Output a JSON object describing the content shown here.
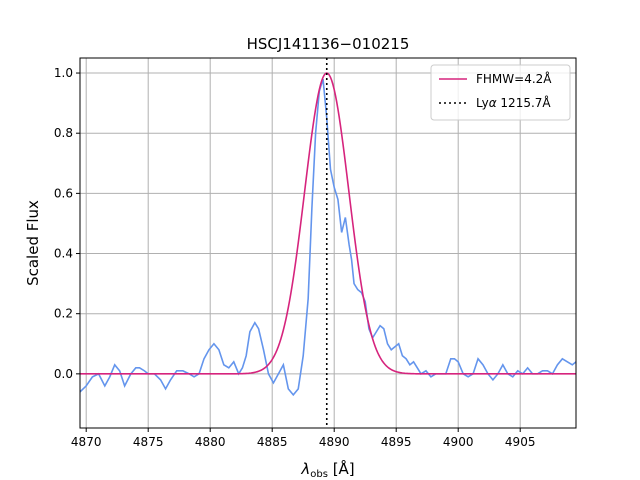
{
  "chart_data": {
    "type": "line",
    "title": "HSCJ141136−010215",
    "xlabel_main": "λ",
    "xlabel_sub": "obs",
    "xlabel_unit": " [Å]",
    "ylabel": "Scaled Flux",
    "xlim": [
      4869.5,
      4909.5
    ],
    "ylim": [
      -0.18,
      1.05
    ],
    "xticks": [
      4870,
      4875,
      4880,
      4885,
      4890,
      4895,
      4900,
      4905
    ],
    "yticks": [
      0.0,
      0.2,
      0.4,
      0.6,
      0.8,
      1.0
    ],
    "xtick_labels": [
      "4870",
      "4875",
      "4880",
      "4885",
      "4890",
      "4895",
      "4900",
      "4905"
    ],
    "ytick_labels": [
      "0.0",
      "0.2",
      "0.4",
      "0.6",
      "0.8",
      "1.0"
    ],
    "grid": true,
    "legend_position": "top-right",
    "legend": {
      "gaussian_label": "FHMW=4.2Å",
      "lya_label_prefix": "Ly",
      "lya_label_alpha": "α",
      "lya_label_suffix": " 1215.7Å"
    },
    "colors": {
      "spectrum": "#6495ed",
      "gaussian": "#d6247d",
      "lya": "#000000",
      "grid": "#b0b0b0"
    },
    "gaussian": {
      "center": 4889.4,
      "fwhm": 4.2,
      "amplitude": 1.0
    },
    "lya_line_x": 4889.4,
    "series": [
      {
        "name": "spectrum",
        "x": [
          4869.5,
          4870.0,
          4870.5,
          4871.0,
          4871.5,
          4871.9,
          4872.3,
          4872.7,
          4873.1,
          4873.6,
          4874.0,
          4874.3,
          4874.7,
          4875.0,
          4875.5,
          4876.0,
          4876.4,
          4876.8,
          4877.3,
          4877.8,
          4878.3,
          4878.7,
          4879.1,
          4879.5,
          4879.9,
          4880.3,
          4880.7,
          4881.1,
          4881.5,
          4881.9,
          4882.3,
          4882.6,
          4882.9,
          4883.2,
          4883.6,
          4883.9,
          4884.3,
          4884.7,
          4885.1,
          4885.5,
          4885.9,
          4886.3,
          4886.7,
          4887.1,
          4887.5,
          4887.9,
          4888.2,
          4888.5,
          4888.8,
          4889.1,
          4889.4,
          4889.7,
          4890.0,
          4890.3,
          4890.6,
          4890.9,
          4891.2,
          4891.4,
          4891.6,
          4891.9,
          4892.2,
          4892.5,
          4892.8,
          4893.1,
          4893.4,
          4893.7,
          4894.0,
          4894.3,
          4894.6,
          4894.9,
          4895.2,
          4895.5,
          4895.8,
          4896.1,
          4896.4,
          4896.7,
          4897.0,
          4897.4,
          4897.8,
          4898.2,
          4898.6,
          4899.0,
          4899.4,
          4899.7,
          4900.0,
          4900.4,
          4900.8,
          4901.2,
          4901.6,
          4902.0,
          4902.4,
          4902.8,
          4903.2,
          4903.6,
          4904.0,
          4904.4,
          4904.8,
          4905.2,
          4905.6,
          4906.0,
          4906.4,
          4906.8,
          4907.2,
          4907.6,
          4908.0,
          4908.4,
          4908.8,
          4909.2,
          4909.5
        ],
        "y": [
          -0.06,
          -0.04,
          -0.01,
          0.0,
          -0.04,
          -0.01,
          0.03,
          0.01,
          -0.04,
          0.0,
          0.02,
          0.02,
          0.01,
          0.0,
          0.0,
          -0.02,
          -0.05,
          -0.02,
          0.01,
          0.01,
          0.0,
          -0.01,
          0.0,
          0.05,
          0.08,
          0.1,
          0.08,
          0.03,
          0.02,
          0.04,
          0.0,
          0.02,
          0.06,
          0.14,
          0.17,
          0.15,
          0.08,
          0.0,
          -0.03,
          0.0,
          0.03,
          -0.05,
          -0.07,
          -0.05,
          0.06,
          0.25,
          0.55,
          0.8,
          0.94,
          0.98,
          0.85,
          0.68,
          0.62,
          0.58,
          0.47,
          0.52,
          0.43,
          0.38,
          0.3,
          0.28,
          0.27,
          0.24,
          0.15,
          0.12,
          0.14,
          0.16,
          0.15,
          0.1,
          0.08,
          0.09,
          0.1,
          0.06,
          0.05,
          0.03,
          0.04,
          0.02,
          0.0,
          0.01,
          -0.01,
          0.0,
          0.0,
          0.0,
          0.05,
          0.05,
          0.04,
          0.0,
          -0.01,
          0.0,
          0.05,
          0.03,
          0.0,
          -0.02,
          0.0,
          0.03,
          0.0,
          -0.01,
          0.01,
          0.0,
          0.02,
          0.0,
          0.0,
          0.01,
          0.01,
          0.0,
          0.03,
          0.05,
          0.04,
          0.03,
          0.04
        ]
      }
    ]
  }
}
